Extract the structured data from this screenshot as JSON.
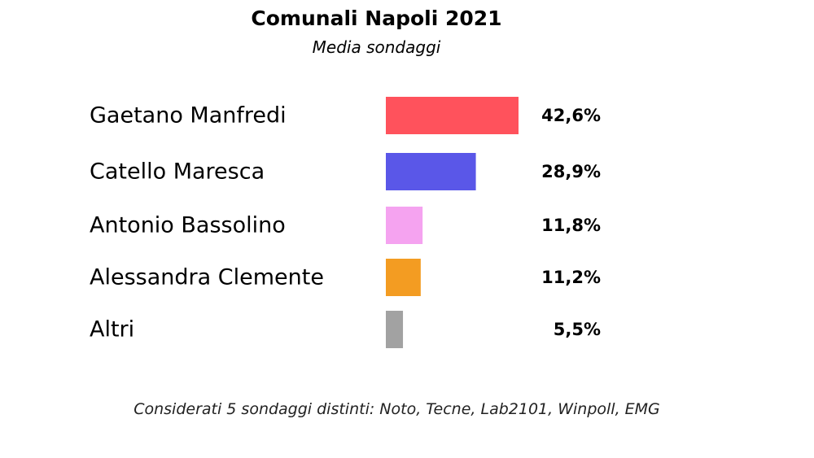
{
  "chart_data": {
    "type": "bar",
    "orientation": "horizontal",
    "title": "Comunali Napoli 2021",
    "subtitle": "Media sondaggi",
    "xlim": [
      0,
      42.6
    ],
    "grid": false,
    "categories": [
      "Gaetano Manfredi",
      "Catello Maresca",
      "Antonio Bassolino",
      "Alessandra Clemente",
      "Altri"
    ],
    "values": [
      42.6,
      28.9,
      11.8,
      11.2,
      5.5
    ],
    "value_labels": [
      "42,6%",
      "28,9%",
      "11,8%",
      "11,2%",
      "5,5%"
    ],
    "colors": [
      "#ff525c",
      "#5a57e8",
      "#f5a3f0",
      "#f39c22",
      "#a2a2a2"
    ],
    "note": "Considerati 5 sondaggi distinti: Noto, Tecne, Lab2101, Winpoll, EMG"
  }
}
